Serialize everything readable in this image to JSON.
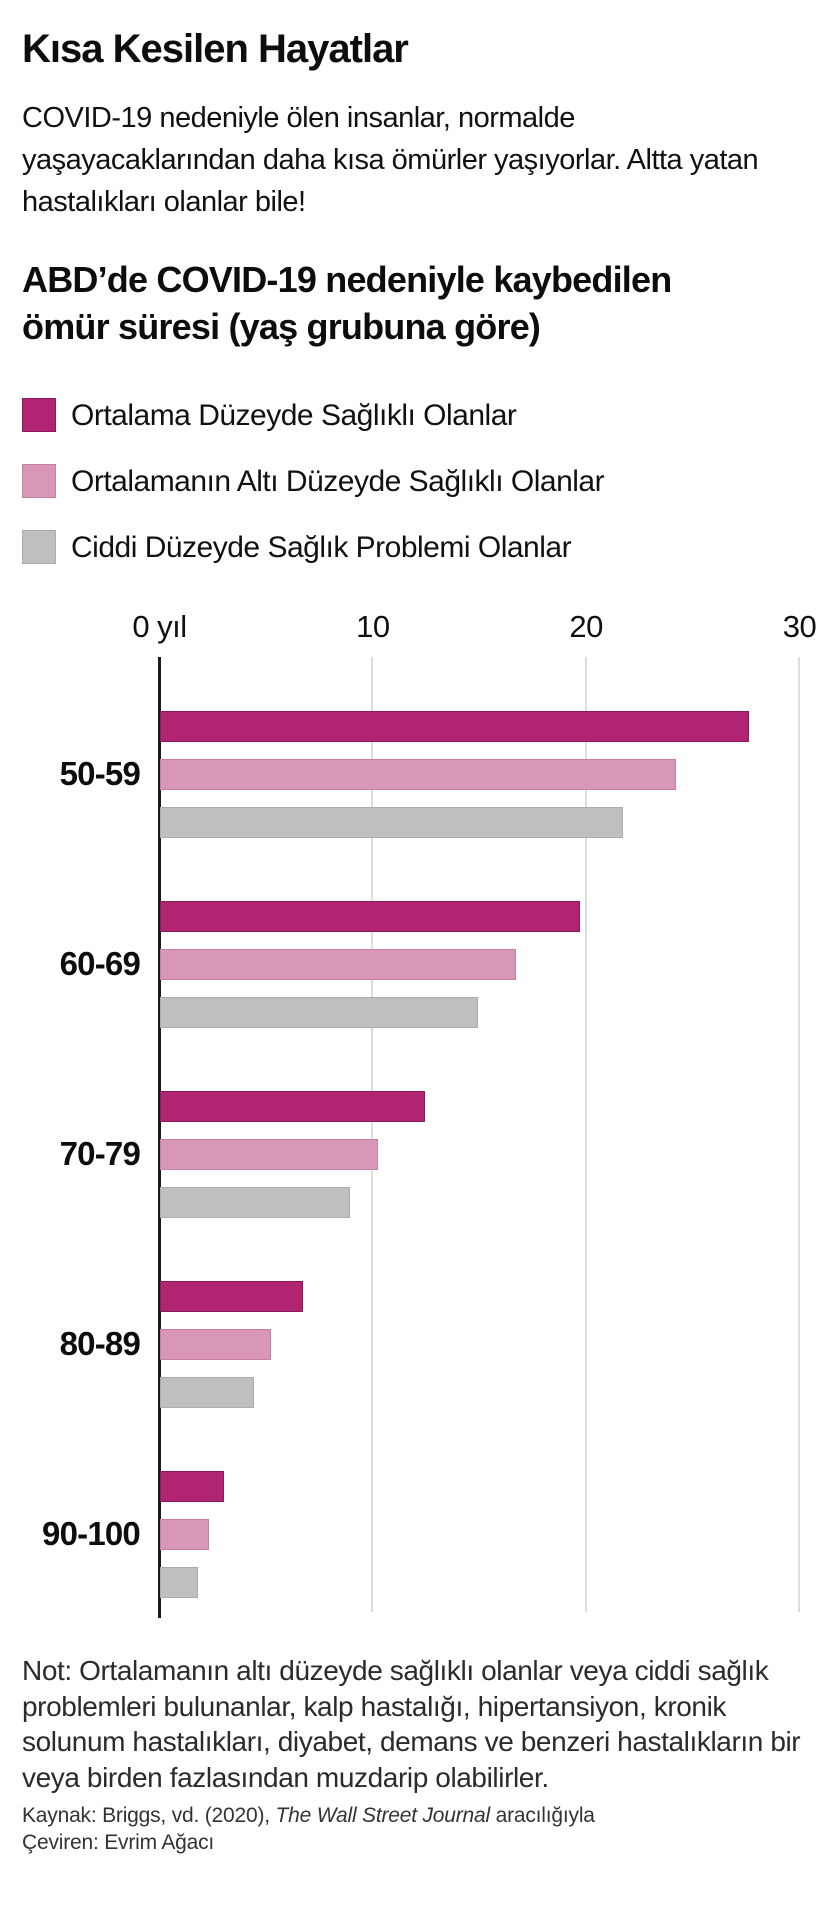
{
  "header": {
    "title": "Kısa Kesilen Hayatlar",
    "intro": "COVID-19 nedeniyle ölen insanlar, normalde yaşayacaklarından daha kısa ömürler yaşıyorlar. Altta yatan hastalıkları olanlar bile!",
    "chart_heading": "ABD’de COVID-19 nedeniyle kaybedilen ömür süresi (yaş grubuna göre)"
  },
  "colors": {
    "average_health": "#b12472",
    "average_health_border": "#8a1b58",
    "below_average": "#d897b7",
    "below_average_border": "#c77fa5",
    "serious_problems": "#bfbfbf",
    "serious_problems_border": "#acacac",
    "axis": "#1a1a1a",
    "grid": "#dedede"
  },
  "legend": {
    "items": [
      {
        "label": "Ortalama Düzeyde Sağlıklı Olanlar",
        "color": "#b12472",
        "border": "#8a1b58"
      },
      {
        "label": "Ortalamanın Altı Düzeyde Sağlıklı Olanlar",
        "color": "#d897b7",
        "border": "#c77fa5"
      },
      {
        "label": "Ciddi Düzeyde Sağlık Problemi Olanlar",
        "color": "#bfbfbf",
        "border": "#acacac"
      }
    ]
  },
  "chart_data": {
    "type": "bar",
    "orientation": "horizontal",
    "title": "ABD’de COVID-19 nedeniyle kaybedilen ömür süresi (yaş grubuna göre)",
    "categories": [
      "50-59",
      "60-69",
      "70-79",
      "80-89",
      "90-100"
    ],
    "series": [
      {
        "name": "Ortalama Düzeyde Sağlıklı Olanlar",
        "color": "#b12472",
        "border": "#8a1b58",
        "values": [
          27.6,
          19.7,
          12.4,
          6.7,
          3.0
        ]
      },
      {
        "name": "Ortalamanın Altı Düzeyde Sağlıklı Olanlar",
        "color": "#d897b7",
        "border": "#c77fa5",
        "values": [
          24.2,
          16.7,
          10.2,
          5.2,
          2.3
        ]
      },
      {
        "name": "Ciddi Düzeyde Sağlık Problemi Olanlar",
        "color": "#bfbfbf",
        "border": "#acacac",
        "values": [
          21.7,
          14.9,
          8.9,
          4.4,
          1.8
        ]
      }
    ],
    "x_axis": {
      "unit": "yıl",
      "range": [
        0,
        30
      ],
      "ticks": [
        0,
        10,
        20,
        30
      ],
      "tick_labels": [
        "0 yıl",
        "10",
        "20",
        "30"
      ]
    },
    "grid": true,
    "legend_position": "top"
  },
  "footer": {
    "note": "Not: Ortalamanın altı düzeyde sağlıklı olanlar veya ciddi sağlık problemleri bulunanlar, kalp hastalığı, hipertansiyon, kronik solunum hastalıkları, diyabet, demans ve benzeri hastalıkların bir veya birden fazlasından muzdarip olabilirler.",
    "source_prefix": "Kaynak: Briggs, vd. (2020), ",
    "source_italic": "The Wall Street Journal",
    "source_suffix": " aracılığıyla",
    "translator": "Çeviren: Evrim Ağacı"
  }
}
